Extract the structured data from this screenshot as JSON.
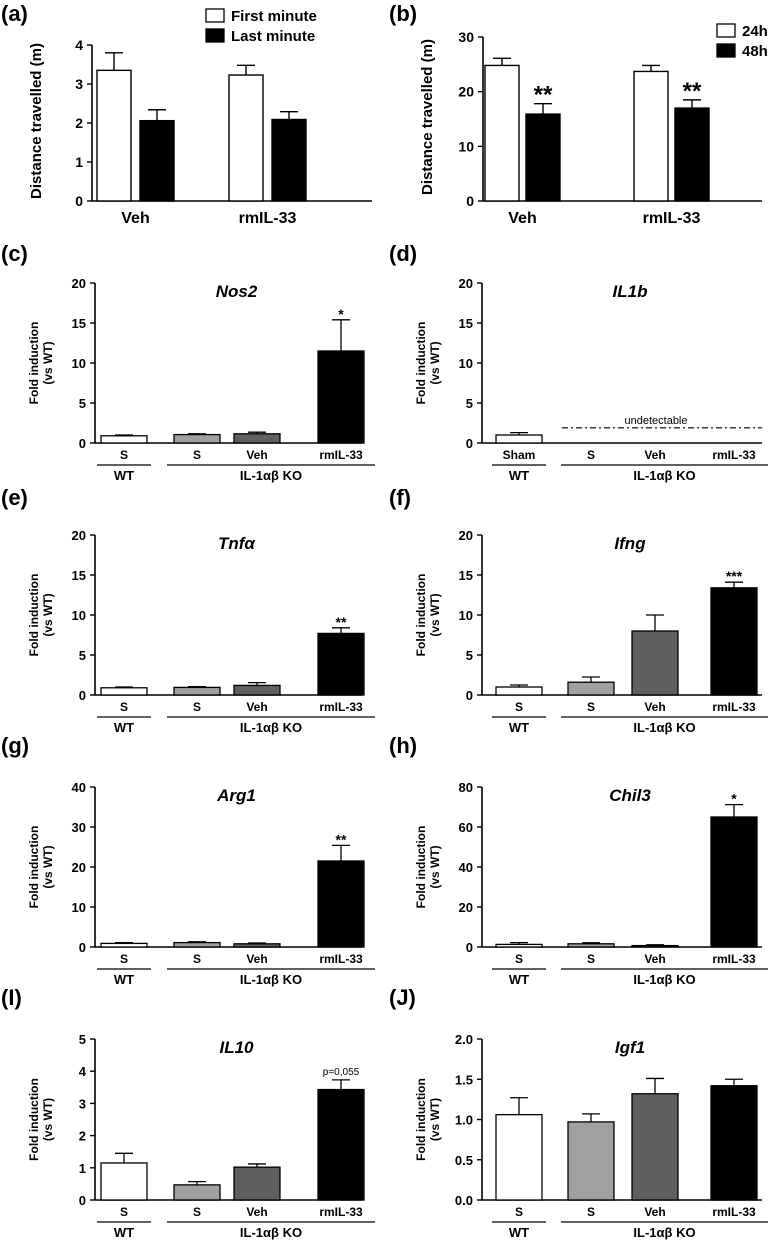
{
  "chart_data": [
    {
      "id": "a",
      "panel_label": "(a)",
      "type": "bar",
      "title": "",
      "xlabel": "",
      "ylabel": "Distance travelled (m)",
      "ylim": [
        0,
        4
      ],
      "yticks": [
        "0",
        "1",
        "2",
        "3",
        "4"
      ],
      "categories": [
        "Veh",
        "rmIL-33"
      ],
      "series": [
        {
          "name": "First minute",
          "color": "#ffffff",
          "values": [
            3.35,
            3.23
          ],
          "errors": [
            0.45,
            0.25
          ]
        },
        {
          "name": "Last minute",
          "color": "#000000",
          "values": [
            2.06,
            2.09
          ],
          "errors": [
            0.28,
            0.2
          ]
        }
      ],
      "annotations": [],
      "legend_position": "top-right"
    },
    {
      "id": "b",
      "panel_label": "(b)",
      "type": "bar",
      "title": "",
      "xlabel": "",
      "ylabel": "Distance travelled (m)",
      "ylim": [
        0,
        30
      ],
      "yticks": [
        "0",
        "10",
        "20",
        "30"
      ],
      "categories": [
        "Veh",
        "rmIL-33"
      ],
      "series": [
        {
          "name": "24h",
          "color": "#ffffff",
          "values": [
            24.8,
            23.7
          ],
          "errors": [
            1.3,
            1.1
          ]
        },
        {
          "name": "48h",
          "color": "#000000",
          "values": [
            15.9,
            17.0
          ],
          "errors": [
            1.9,
            1.5
          ]
        }
      ],
      "annotations": [
        {
          "category": 0,
          "series": 1,
          "text": "**"
        },
        {
          "category": 1,
          "series": 1,
          "text": "**"
        }
      ],
      "legend_position": "top-right"
    },
    {
      "id": "c",
      "panel_label": "(c)",
      "type": "bar",
      "title": "Nos2",
      "ylabel": [
        "Fold induction",
        "(vs WT)"
      ],
      "ylim": [
        0,
        20
      ],
      "yticks": [
        "0",
        "5",
        "10",
        "15",
        "20"
      ],
      "categories": [
        "S",
        "S",
        "Veh",
        "rmIL-33"
      ],
      "values": [
        0.9,
        1.05,
        1.15,
        11.5
      ],
      "errors": [
        0.1,
        0.1,
        0.2,
        3.9
      ],
      "bar_colors": [
        "#ffffff",
        "#a0a0a0",
        "#606060",
        "#000000"
      ],
      "annotations": [
        {
          "bar": 3,
          "text": "*"
        }
      ],
      "groups": [
        "WT",
        "IL-1αβ KO"
      ]
    },
    {
      "id": "d",
      "panel_label": "(d)",
      "type": "bar",
      "title": "IL1b",
      "ylabel": [
        "Fold induction",
        "(vs WT)"
      ],
      "ylim": [
        0,
        20
      ],
      "yticks": [
        "0",
        "5",
        "10",
        "15",
        "20"
      ],
      "categories": [
        "Sham",
        "S",
        "Veh",
        "rmIL-33"
      ],
      "values": [
        1.0,
        null,
        null,
        null
      ],
      "errors": [
        0.3,
        null,
        null,
        null
      ],
      "bar_colors": [
        "#ffffff",
        "#a0a0a0",
        "#606060",
        "#000000"
      ],
      "annotations": [],
      "note": "undetectable",
      "groups": [
        "WT",
        "IL-1αβ KO"
      ]
    },
    {
      "id": "e",
      "panel_label": "(e)",
      "type": "bar",
      "title": "Tnfα",
      "ylabel": [
        "Fold induction",
        "(vs WT)"
      ],
      "ylim": [
        0,
        20
      ],
      "yticks": [
        "0",
        "5",
        "10",
        "15",
        "20"
      ],
      "categories": [
        "S",
        "S",
        "Veh",
        "rmIL-33"
      ],
      "values": [
        0.9,
        0.95,
        1.2,
        7.7
      ],
      "errors": [
        0.1,
        0.1,
        0.35,
        0.7
      ],
      "bar_colors": [
        "#ffffff",
        "#a0a0a0",
        "#606060",
        "#000000"
      ],
      "annotations": [
        {
          "bar": 3,
          "text": "**"
        }
      ],
      "groups": [
        "WT",
        "IL-1αβ KO"
      ]
    },
    {
      "id": "f",
      "panel_label": "(f)",
      "type": "bar",
      "title": "Ifng",
      "ylabel": [
        "Fold induction",
        "(vs WT)"
      ],
      "ylim": [
        0,
        20
      ],
      "yticks": [
        "0",
        "5",
        "10",
        "15",
        "20"
      ],
      "categories": [
        "S",
        "S",
        "Veh",
        "rmIL-33"
      ],
      "values": [
        1.0,
        1.6,
        8.0,
        13.4
      ],
      "errors": [
        0.25,
        0.65,
        2.0,
        0.7
      ],
      "bar_colors": [
        "#ffffff",
        "#a0a0a0",
        "#606060",
        "#000000"
      ],
      "annotations": [
        {
          "bar": 3,
          "text": "***"
        }
      ],
      "groups": [
        "WT",
        "IL-1αβ KO"
      ]
    },
    {
      "id": "g",
      "panel_label": "(g)",
      "type": "bar",
      "title": "Arg1",
      "ylabel": [
        "Fold induction",
        "(vs WT)"
      ],
      "ylim": [
        0,
        40
      ],
      "yticks": [
        "0",
        "10",
        "20",
        "30",
        "40"
      ],
      "categories": [
        "S",
        "S",
        "Veh",
        "rmIL-33"
      ],
      "values": [
        0.9,
        1.1,
        0.8,
        21.5
      ],
      "errors": [
        0.2,
        0.2,
        0.2,
        3.9
      ],
      "bar_colors": [
        "#ffffff",
        "#a0a0a0",
        "#606060",
        "#000000"
      ],
      "annotations": [
        {
          "bar": 3,
          "text": "**"
        }
      ],
      "groups": [
        "WT",
        "IL-1αβ KO"
      ]
    },
    {
      "id": "h",
      "panel_label": "(h)",
      "type": "bar",
      "title": "Chil3",
      "ylabel": [
        "Fold induction",
        "(vs WT)"
      ],
      "ylim": [
        0,
        80
      ],
      "yticks": [
        "0",
        "20",
        "40",
        "60",
        "80"
      ],
      "categories": [
        "S",
        "S",
        "Veh",
        "rmIL-33"
      ],
      "values": [
        1.3,
        1.6,
        0.7,
        65.0
      ],
      "errors": [
        0.9,
        0.5,
        0.4,
        6.2
      ],
      "bar_colors": [
        "#ffffff",
        "#a0a0a0",
        "#606060",
        "#000000"
      ],
      "annotations": [
        {
          "bar": 3,
          "text": "*"
        }
      ],
      "groups": [
        "WT",
        "IL-1αβ KO"
      ]
    },
    {
      "id": "i",
      "panel_label": "(I)",
      "type": "bar",
      "title": "IL10",
      "ylabel": [
        "Fold induction",
        "(vs WT)"
      ],
      "ylim": [
        0,
        5
      ],
      "yticks": [
        "0",
        "1",
        "2",
        "3",
        "4",
        "5"
      ],
      "categories": [
        "S",
        "S",
        "Veh",
        "rmIL-33"
      ],
      "values": [
        1.15,
        0.47,
        1.02,
        3.43
      ],
      "errors": [
        0.3,
        0.1,
        0.1,
        0.3
      ],
      "bar_colors": [
        "#ffffff",
        "#a0a0a0",
        "#606060",
        "#000000"
      ],
      "annotations": [
        {
          "bar": 3,
          "text": "p=0,055"
        }
      ],
      "groups": [
        "WT",
        "IL-1αβ KO"
      ]
    },
    {
      "id": "j",
      "panel_label": "(J)",
      "type": "bar",
      "title": "Igf1",
      "ylabel": [
        "Fold induction",
        "(vs WT)"
      ],
      "ylim": [
        0,
        2.0
      ],
      "yticks": [
        "0.0",
        "0.5",
        "1.0",
        "1.5",
        "2.0"
      ],
      "categories": [
        "S",
        "S",
        "Veh",
        "rmIL-33"
      ],
      "values": [
        1.06,
        0.97,
        1.32,
        1.42
      ],
      "errors": [
        0.21,
        0.1,
        0.19,
        0.08
      ],
      "bar_colors": [
        "#ffffff",
        "#a0a0a0",
        "#606060",
        "#000000"
      ],
      "annotations": [],
      "groups": [
        "WT",
        "IL-1αβ KO"
      ]
    }
  ]
}
